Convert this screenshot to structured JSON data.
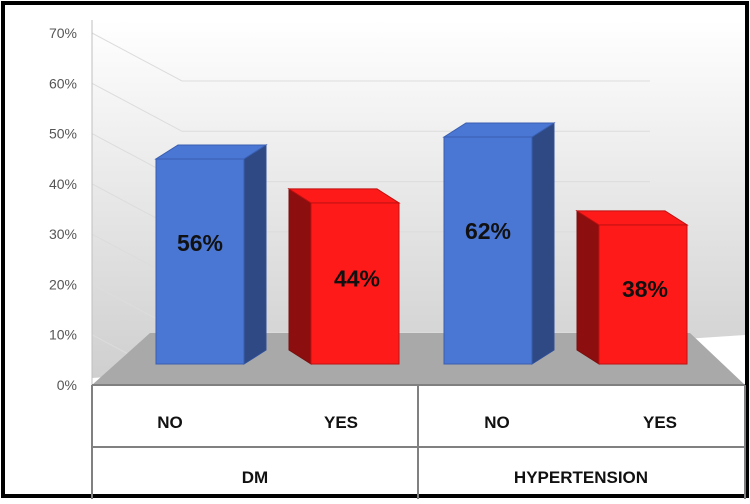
{
  "chart_data": {
    "type": "bar",
    "view": "3d",
    "groups": [
      {
        "label": "DM",
        "categories": [
          "NO",
          "YES"
        ]
      },
      {
        "label": "HYPERTENSION",
        "categories": [
          "NO",
          "YES"
        ]
      }
    ],
    "bars": [
      {
        "group": "DM",
        "category": "NO",
        "value": 56,
        "label": "56%",
        "color": "#4a76d4"
      },
      {
        "group": "DM",
        "category": "YES",
        "value": 44,
        "label": "44%",
        "color": "#ff1a1a"
      },
      {
        "group": "HYPERTENSION",
        "category": "NO",
        "value": 62,
        "label": "62%",
        "color": "#4a76d4"
      },
      {
        "group": "HYPERTENSION",
        "category": "YES",
        "value": 38,
        "label": "38%",
        "color": "#ff1a1a"
      }
    ],
    "y_ticks": [
      "0%",
      "10%",
      "20%",
      "30%",
      "40%",
      "50%",
      "60%",
      "70%"
    ],
    "ylim": [
      0,
      70
    ],
    "grid": true,
    "title": "",
    "xlabel": "",
    "ylabel": ""
  }
}
